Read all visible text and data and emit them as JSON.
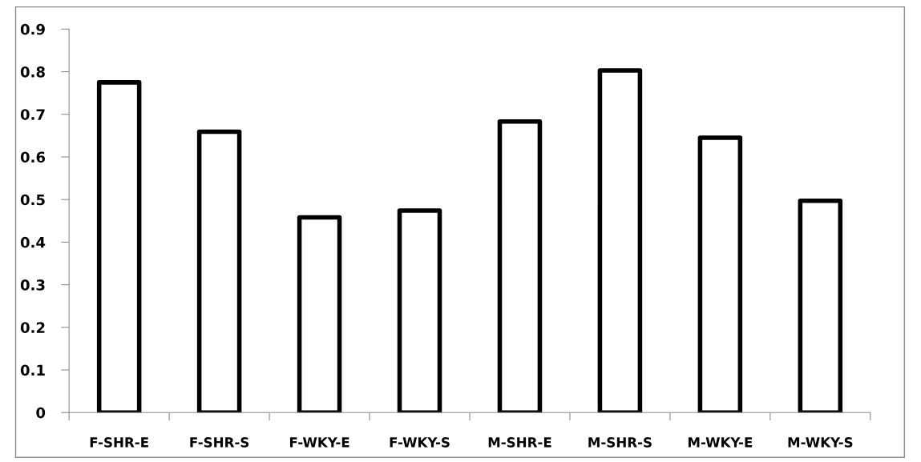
{
  "chart_data": {
    "type": "bar",
    "categories": [
      "F-SHR-E",
      "F-SHR-S",
      "F-WKY-E",
      "F-WKY-S",
      "M-SHR-E",
      "M-SHR-S",
      "M-WKY-E",
      "M-WKY-S"
    ],
    "values": [
      0.775,
      0.659,
      0.458,
      0.474,
      0.683,
      0.803,
      0.645,
      0.497
    ],
    "color": "#000000",
    "ylim": [
      0,
      0.9
    ],
    "yticks": [
      {
        "value": 0,
        "label": "0"
      },
      0.1,
      0.2,
      0.3,
      0.4,
      0.5,
      0.6,
      0.7,
      0.8,
      0.9
    ],
    "grid": false,
    "legend": false
  }
}
